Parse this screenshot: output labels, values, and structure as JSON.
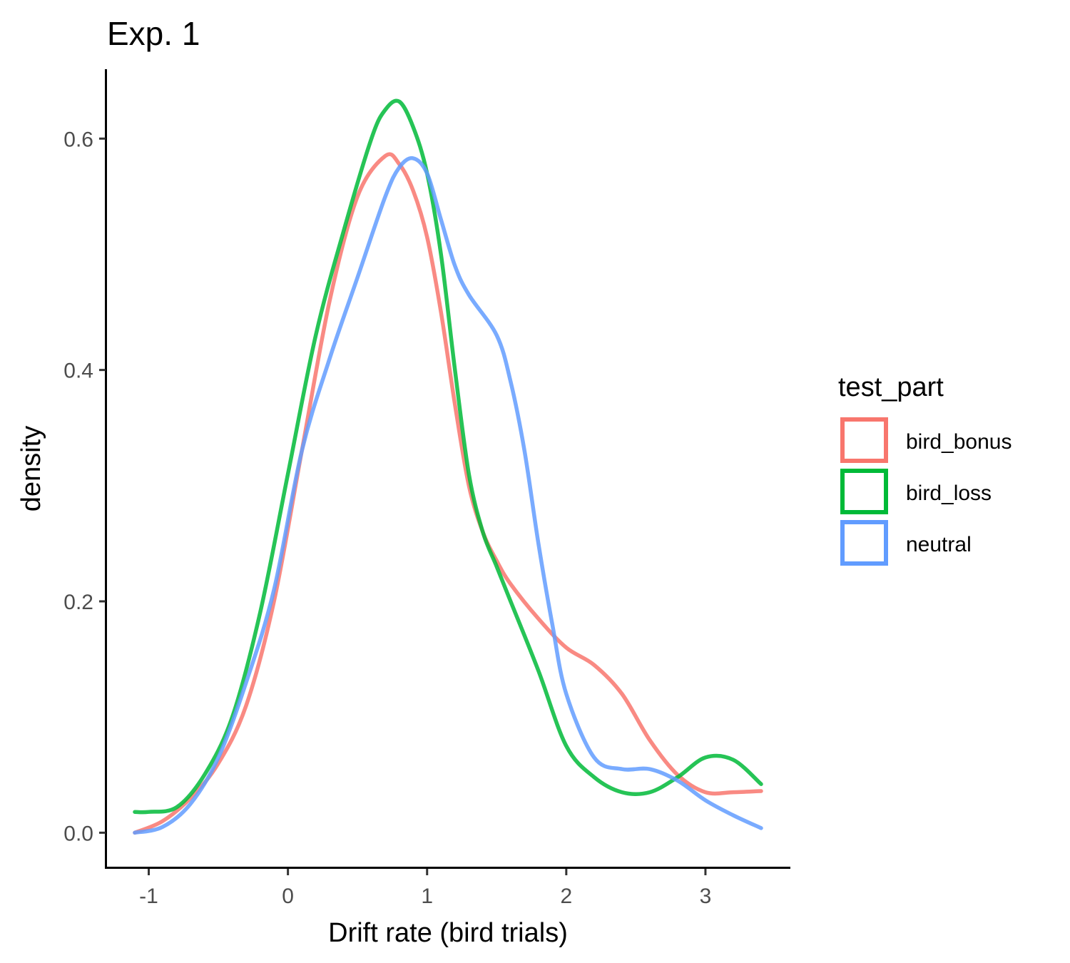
{
  "chart_data": {
    "type": "line",
    "title": "Exp. 1",
    "xlabel": "Drift rate (bird trials)",
    "ylabel": "density",
    "xlim": [
      -1.3,
      3.6
    ],
    "ylim": [
      -0.03,
      0.66
    ],
    "x_ticks": [
      -1,
      0,
      1,
      2,
      3
    ],
    "x_tick_labels": [
      "-1",
      "0",
      "1",
      "2",
      "3"
    ],
    "y_ticks": [
      0.0,
      0.2,
      0.4,
      0.6
    ],
    "y_tick_labels": [
      "0.0",
      "0.2",
      "0.4",
      "0.6"
    ],
    "grid": false,
    "legend": {
      "title": "test_part",
      "placement": "right",
      "entries": [
        "bird_bonus",
        "bird_loss",
        "neutral"
      ]
    },
    "series": [
      {
        "name": "bird_bonus",
        "color": "#F8766D",
        "x": [
          -1.1,
          -0.9,
          -0.7,
          -0.5,
          -0.3,
          -0.1,
          0.1,
          0.3,
          0.5,
          0.7,
          0.8,
          0.9,
          1.0,
          1.1,
          1.2,
          1.3,
          1.4,
          1.5,
          1.6,
          1.8,
          2.0,
          2.2,
          2.4,
          2.6,
          2.8,
          3.0,
          3.2,
          3.4
        ],
        "y": [
          0.0,
          0.01,
          0.03,
          0.06,
          0.11,
          0.2,
          0.33,
          0.46,
          0.55,
          0.585,
          0.578,
          0.555,
          0.515,
          0.45,
          0.37,
          0.3,
          0.26,
          0.235,
          0.215,
          0.185,
          0.16,
          0.145,
          0.12,
          0.08,
          0.05,
          0.035,
          0.035,
          0.036
        ]
      },
      {
        "name": "bird_loss",
        "color": "#00BA38",
        "x": [
          -1.1,
          -1.0,
          -0.8,
          -0.6,
          -0.4,
          -0.2,
          0.0,
          0.2,
          0.4,
          0.6,
          0.7,
          0.8,
          0.9,
          1.0,
          1.1,
          1.2,
          1.3,
          1.4,
          1.5,
          1.6,
          1.8,
          2.0,
          2.2,
          2.4,
          2.6,
          2.8,
          3.0,
          3.2,
          3.4
        ],
        "y": [
          0.018,
          0.018,
          0.022,
          0.05,
          0.1,
          0.19,
          0.31,
          0.43,
          0.52,
          0.6,
          0.625,
          0.632,
          0.61,
          0.57,
          0.5,
          0.4,
          0.31,
          0.26,
          0.23,
          0.2,
          0.14,
          0.075,
          0.048,
          0.035,
          0.035,
          0.048,
          0.065,
          0.063,
          0.042
        ]
      },
      {
        "name": "neutral",
        "color": "#619CFF",
        "x": [
          -1.1,
          -0.9,
          -0.7,
          -0.5,
          -0.3,
          -0.1,
          0.1,
          0.3,
          0.5,
          0.7,
          0.8,
          0.9,
          1.0,
          1.1,
          1.2,
          1.3,
          1.5,
          1.6,
          1.7,
          1.8,
          1.9,
          2.0,
          2.2,
          2.4,
          2.6,
          2.8,
          3.0,
          3.2,
          3.4
        ],
        "y": [
          0.0,
          0.005,
          0.025,
          0.065,
          0.13,
          0.21,
          0.33,
          0.41,
          0.48,
          0.55,
          0.575,
          0.583,
          0.57,
          0.53,
          0.49,
          0.465,
          0.43,
          0.39,
          0.33,
          0.25,
          0.18,
          0.12,
          0.065,
          0.055,
          0.055,
          0.045,
          0.028,
          0.015,
          0.004
        ]
      }
    ]
  }
}
